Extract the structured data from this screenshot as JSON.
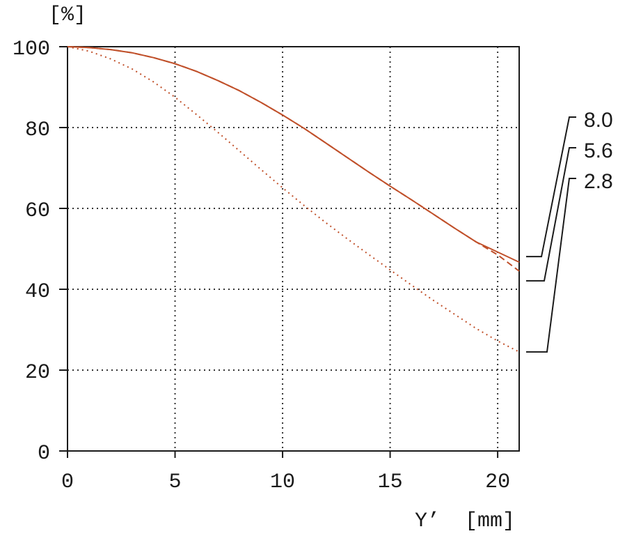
{
  "chart_data": {
    "type": "line",
    "title": "",
    "ylabel": "[%]",
    "xlabel": "Y’  [mm]",
    "xlim": [
      0,
      21
    ],
    "ylim": [
      0,
      100
    ],
    "x_ticks": [
      0,
      5,
      10,
      15,
      20
    ],
    "y_ticks": [
      0,
      20,
      40,
      60,
      80,
      100
    ],
    "x_tick_labels": [
      "0",
      "5",
      "10",
      "15",
      "20"
    ],
    "y_tick_labels": [
      "0",
      "20",
      "40",
      "60",
      "80",
      "100"
    ],
    "grid": true,
    "legend": "right, leader lines",
    "color": "#c0502a",
    "x": [
      0,
      1,
      2,
      3,
      4,
      5,
      6,
      7,
      8,
      9,
      10,
      11,
      12,
      13,
      14,
      15,
      16,
      17,
      18,
      19,
      20,
      21
    ],
    "series": [
      {
        "name": "8.0",
        "style": "solid",
        "values": [
          100,
          99.8,
          99.3,
          98.5,
          97.3,
          95.8,
          93.9,
          91.6,
          89.1,
          86.2,
          83.1,
          79.8,
          76.2,
          72.6,
          69.0,
          65.5,
          62.1,
          58.6,
          55.1,
          51.7,
          49.2,
          46.7
        ]
      },
      {
        "name": "5.6",
        "style": "dashed",
        "values": [
          100,
          99.8,
          99.3,
          98.5,
          97.3,
          95.8,
          93.9,
          91.6,
          89.1,
          86.2,
          83.1,
          79.8,
          76.2,
          72.6,
          69.0,
          65.5,
          62.1,
          58.6,
          55.1,
          51.7,
          48.5,
          44.5
        ]
      },
      {
        "name": "2.8",
        "style": "dotted",
        "values": [
          100,
          98.9,
          97.0,
          94.5,
          91.3,
          87.5,
          83.2,
          78.8,
          74.2,
          69.6,
          65.1,
          60.7,
          56.5,
          52.5,
          48.6,
          44.8,
          41.0,
          37.3,
          33.8,
          30.3,
          27.2,
          24.5
        ]
      }
    ]
  }
}
